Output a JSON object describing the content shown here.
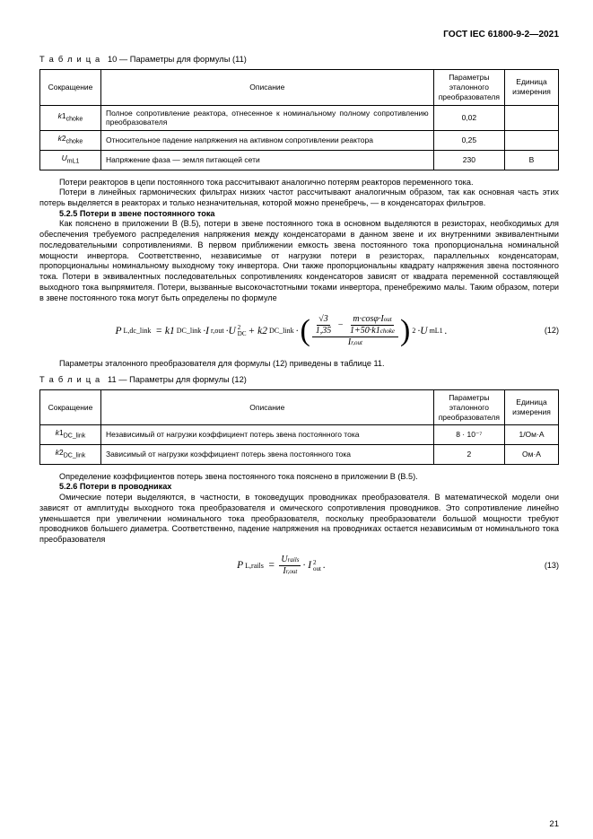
{
  "header": {
    "standard": "ГОСТ IEC 61800-9-2—2021"
  },
  "table10": {
    "caption_prefix": "Т а б л и ц а",
    "caption": "10 — Параметры для формулы (11)",
    "headers": {
      "abbr": "Сокращение",
      "desc": "Описание",
      "param": "Параметры эталонного преобразователя",
      "unit": "Единица измерения"
    },
    "rows": [
      {
        "abbr_html": "<span class='ital'>k</span>1<span class='sub'>choke</span>",
        "desc": "Полное сопротивление реактора, отнесенное к номинальному полному сопротивлению преобразователя",
        "param": "0,02",
        "unit": ""
      },
      {
        "abbr_html": "<span class='ital'>k</span>2<span class='sub'>choke</span>",
        "desc": "Относительное падение напряжения на активном сопротивлении реактора",
        "param": "0,25",
        "unit": ""
      },
      {
        "abbr_html": "<span class='ital'>U</span><span class='sub'>mL1</span>",
        "desc": "Напряжение фаза — земля питающей сети",
        "param": "230",
        "unit": "В"
      }
    ]
  },
  "para1": "Потери реакторов в цепи постоянного тока рассчитывают аналогично потерям реакторов переменного тока.",
  "para2": "Потери в линейных гармонических фильтрах низких частот рассчитывают аналогичным образом, так как основная часть этих потерь выделяется в реакторах и только незначительная, которой можно пренебречь, — в конденсаторах фильтров.",
  "sec525": "5.2.5 Потери в звене постоянного тока",
  "para3": "Как пояснено в приложении В (В.5), потери в звене постоянного тока в основном выделяются в резисторах, необходимых для обеспечения требуемого распределения напряжения между конденсаторами в данном звене и их внутренними эквивалентными последовательными сопротивлениями. В первом приближении емкость звена постоянного тока пропорциональна номинальной мощности инвертора. Соответственно, независимые от нагрузки потери в резисторах, параллельных конденсаторам, пропорциональны номинальному выходному току инвертора. Они также пропорциональны квадрату напряжения звена постоянного тока. Потери в эквивалентных последовательных сопротивлениях конденсаторов зависят от квадрата переменной составляющей выходного тока выпрямителя. Потери, вызванные высокочастотными токами инвертора, пренебрежимо малы. Таким образом, потери в звене постоянного тока могут быть определены по формуле",
  "eq12_num": "(12)",
  "para4": "Параметры эталонного преобразователя для формулы (12) приведены в таблице 11.",
  "table11": {
    "caption_prefix": "Т а б л и ц а",
    "caption": "11 — Параметры для формулы (12)",
    "headers": {
      "abbr": "Сокращение",
      "desc": "Описание",
      "param": "Параметры эталонного преобразователя",
      "unit": "Единица измерения"
    },
    "rows": [
      {
        "abbr_html": "<span class='ital'>k</span>1<span class='sub'>DC_link</span>",
        "desc": "Независимый от нагрузки коэффициент потерь звена постоянного тока",
        "param": "8 · 10⁻⁷",
        "unit": "1/Ом·А"
      },
      {
        "abbr_html": "<span class='ital'>k</span>2<span class='sub'>DC_link</span>",
        "desc": "Зависимый от нагрузки коэффициент потерь звена постоянного тока",
        "param": "2",
        "unit": "Ом·А"
      }
    ]
  },
  "para5": "Определение коэффициентов потерь звена постоянного тока пояснено в приложении В (В.5).",
  "sec526": "5.2.6 Потери в проводниках",
  "para6": "Омические потери выделяются, в частности, в токоведущих проводниках преобразователя. В математической модели они зависят от амплитуды выходного тока преобразователя и омического сопротивления проводников. Это сопротивление линейно уменьшается при увеличении номинального тока преобразователя, поскольку преобразователи большой мощности требуют проводников большего диаметра. Соответственно, падение напряжения на проводниках остается независимым от номинального тока преобразователя",
  "eq13_num": "(13)",
  "page_number": "21",
  "formulas": {
    "eq12": {
      "lhs": "P<sub>L,dc_link</sub> =",
      "terms": "k1<sub>DC_link</sub> · I<sub>r,out</sub> · U<sub>DC</sub><sup>2</sup> + k2<sub>DC_link</sub> ·",
      "frac_outer_top_left": "√3",
      "frac_outer_top_mid": "m · cosφ · I<sub>out</sub>",
      "frac_outer_top_mid_denom": "1 + 50 · k1<sub>choke</sub>",
      "frac_outer_top_left_denom": "1,35",
      "frac_outer_bot": "I<sub>r,out</sub>",
      "exponent": "2",
      "tail": " · U<sub>mL1</sub>."
    },
    "eq13": {
      "full": "P<sub>L,rails</sub> = (U<sub>rails</sub> / I<sub>r,out</sub>) · I<sub>out</sub><sup>2</sup>."
    }
  }
}
